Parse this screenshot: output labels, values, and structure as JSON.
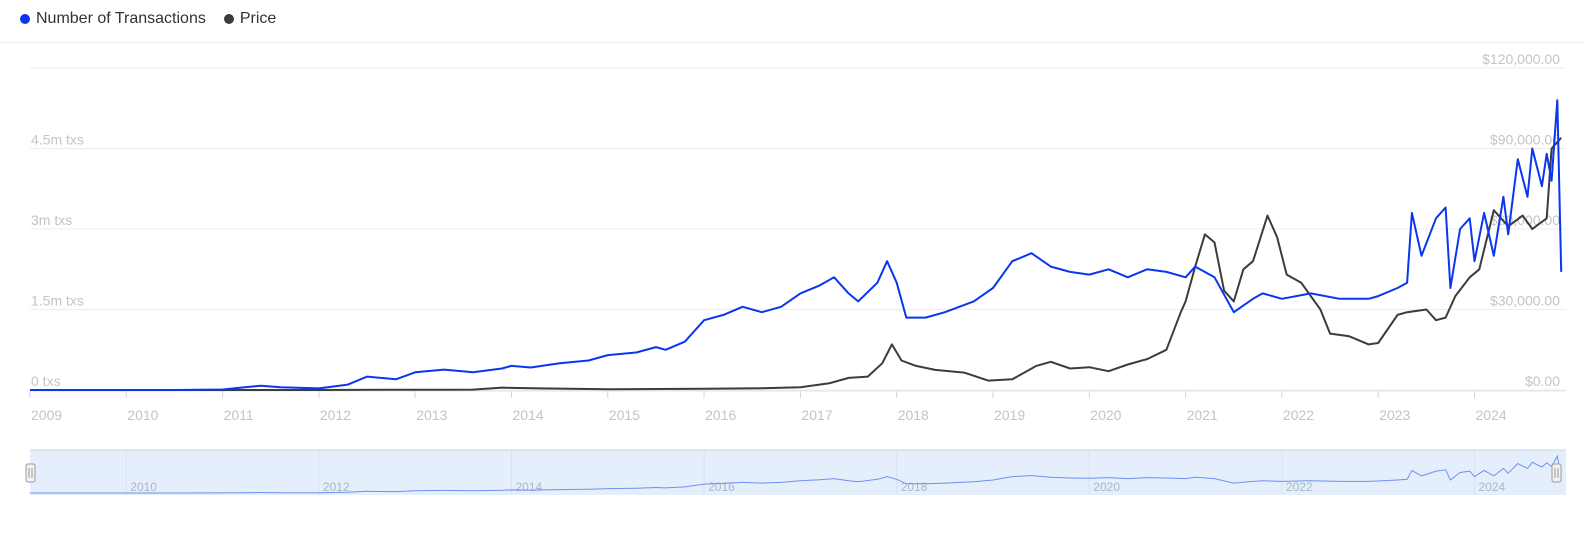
{
  "colors": {
    "transactions": "#0a36f0",
    "price": "#3c3c3c",
    "navigator_fill": "#e4effb",
    "navigator_line": "#6f8ff5"
  },
  "legend": [
    {
      "label": "Number of Transactions",
      "color": "#0a36f0"
    },
    {
      "label": "Price",
      "color": "#3c3c3c"
    }
  ],
  "chart_data": {
    "type": "line",
    "x_ticks": [
      "2009",
      "2010",
      "2011",
      "2012",
      "2013",
      "2014",
      "2015",
      "2016",
      "2017",
      "2018",
      "2019",
      "2020",
      "2021",
      "2022",
      "2023",
      "2024"
    ],
    "y_left_ticks": [
      "0 txs",
      "1.5m txs",
      "3m txs",
      "4.5m txs"
    ],
    "y_right_ticks": [
      "$0.00",
      "$30,000.00",
      "$60,000.00",
      "$90,000.00",
      "$120,000.00"
    ],
    "y_left_range": [
      0,
      6000000
    ],
    "y_right_range": [
      0,
      120000
    ],
    "grid": true,
    "legend_position": "top-left",
    "series": [
      {
        "name": "Number of Transactions",
        "axis": "left",
        "x": [
          2009.0,
          2010.0,
          2010.5,
          2011.0,
          2011.4,
          2011.6,
          2012.0,
          2012.3,
          2012.5,
          2012.8,
          2013.0,
          2013.3,
          2013.6,
          2013.9,
          2014.0,
          2014.2,
          2014.5,
          2014.8,
          2015.0,
          2015.3,
          2015.5,
          2015.6,
          2015.8,
          2016.0,
          2016.2,
          2016.4,
          2016.6,
          2016.8,
          2017.0,
          2017.2,
          2017.35,
          2017.5,
          2017.6,
          2017.8,
          2017.9,
          2018.0,
          2018.1,
          2018.3,
          2018.5,
          2018.8,
          2019.0,
          2019.2,
          2019.4,
          2019.6,
          2019.8,
          2020.0,
          2020.2,
          2020.4,
          2020.6,
          2020.8,
          2021.0,
          2021.1,
          2021.3,
          2021.5,
          2021.7,
          2021.8,
          2022.0,
          2022.3,
          2022.6,
          2022.9,
          2023.0,
          2023.2,
          2023.3,
          2023.35,
          2023.45,
          2023.6,
          2023.7,
          2023.75,
          2023.85,
          2023.95,
          2024.0,
          2024.1,
          2024.2,
          2024.3,
          2024.35,
          2024.45,
          2024.55,
          2024.6,
          2024.7,
          2024.75,
          2024.8,
          2024.86,
          2024.9
        ],
        "values": [
          0,
          0,
          0,
          10000,
          80000,
          50000,
          30000,
          100000,
          250000,
          200000,
          330000,
          380000,
          330000,
          400000,
          450000,
          420000,
          500000,
          550000,
          650000,
          700000,
          800000,
          750000,
          900000,
          1300000,
          1400000,
          1550000,
          1450000,
          1550000,
          1800000,
          1950000,
          2100000,
          1800000,
          1650000,
          2000000,
          2400000,
          2000000,
          1350000,
          1350000,
          1450000,
          1650000,
          1900000,
          2400000,
          2550000,
          2300000,
          2200000,
          2150000,
          2250000,
          2100000,
          2250000,
          2200000,
          2100000,
          2300000,
          2100000,
          1450000,
          1700000,
          1800000,
          1700000,
          1800000,
          1700000,
          1700000,
          1750000,
          1900000,
          2000000,
          3300000,
          2500000,
          3200000,
          3400000,
          1900000,
          3000000,
          3200000,
          2400000,
          3300000,
          2500000,
          3600000,
          2900000,
          4300000,
          3600000,
          4500000,
          3800000,
          4400000,
          3900000,
          5400000,
          2200000
        ]
      },
      {
        "name": "Price",
        "axis": "right",
        "x": [
          2009.0,
          2010.5,
          2011.0,
          2011.4,
          2011.6,
          2012.0,
          2013.0,
          2013.3,
          2013.6,
          2013.9,
          2014.0,
          2014.3,
          2014.6,
          2015.0,
          2016.0,
          2016.6,
          2017.0,
          2017.3,
          2017.5,
          2017.7,
          2017.85,
          2017.95,
          2018.05,
          2018.2,
          2018.4,
          2018.7,
          2018.95,
          2019.2,
          2019.45,
          2019.6,
          2019.8,
          2020.0,
          2020.2,
          2020.4,
          2020.6,
          2020.8,
          2020.95,
          2021.0,
          2021.1,
          2021.2,
          2021.3,
          2021.4,
          2021.5,
          2021.6,
          2021.7,
          2021.85,
          2021.95,
          2022.05,
          2022.2,
          2022.4,
          2022.5,
          2022.7,
          2022.9,
          2023.0,
          2023.2,
          2023.3,
          2023.5,
          2023.6,
          2023.7,
          2023.8,
          2023.95,
          2024.05,
          2024.2,
          2024.35,
          2024.5,
          2024.6,
          2024.75,
          2024.8,
          2024.9
        ],
        "values": [
          0,
          0,
          1,
          10,
          5,
          5,
          100,
          100,
          150,
          900,
          800,
          600,
          500,
          300,
          430,
          650,
          1000,
          2500,
          4500,
          5000,
          10000,
          17000,
          11000,
          9000,
          7500,
          6500,
          3500,
          4000,
          9000,
          10500,
          8000,
          8500,
          7000,
          9500,
          11500,
          15000,
          29000,
          33000,
          46000,
          58000,
          55000,
          37000,
          33000,
          45000,
          48000,
          65000,
          57000,
          43000,
          40000,
          30000,
          21000,
          20000,
          17000,
          17500,
          28000,
          29000,
          30000,
          26000,
          27000,
          35000,
          42000,
          45000,
          67000,
          61000,
          65000,
          60000,
          64000,
          90000,
          94000
        ]
      }
    ]
  }
}
